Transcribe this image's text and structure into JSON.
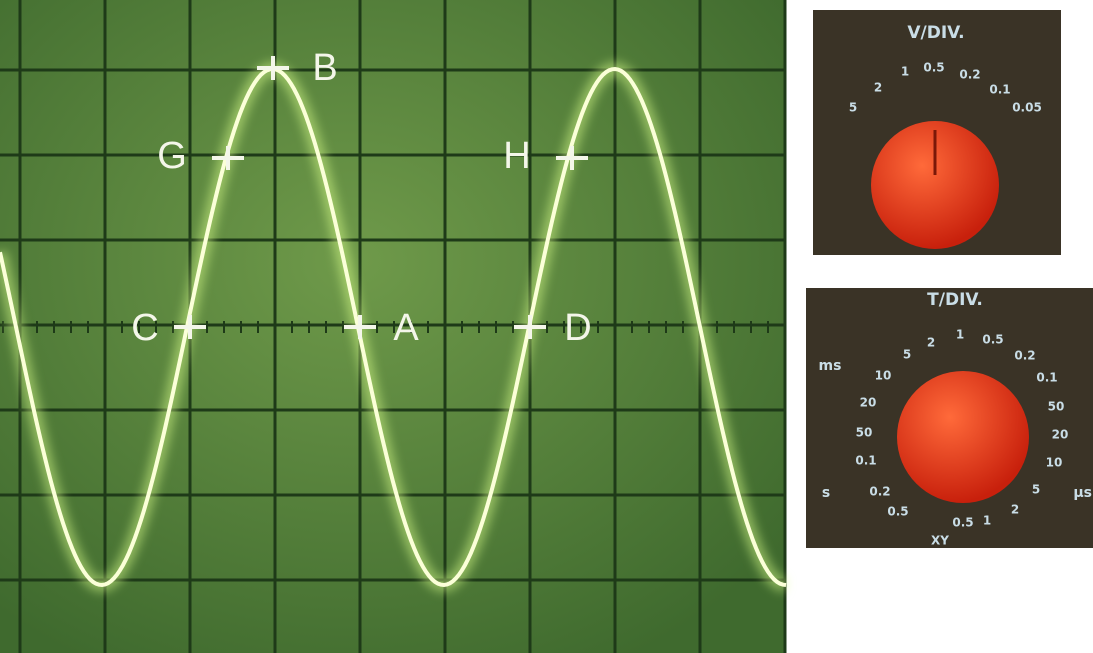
{
  "screen": {
    "points": [
      {
        "label": "B"
      },
      {
        "label": "G"
      },
      {
        "label": "H"
      },
      {
        "label": "C"
      },
      {
        "label": "A"
      },
      {
        "label": "D"
      }
    ]
  },
  "v_div": {
    "title": "V/DIV.",
    "scale": [
      "5",
      "2",
      "1",
      "0.5",
      "0.2",
      "0.1",
      "0.05"
    ]
  },
  "t_div": {
    "title": "T/DIV.",
    "units": [
      "ms",
      "s",
      "µs"
    ],
    "scale": [
      "0.5",
      "0.2",
      "0.1",
      "50",
      "20",
      "10",
      "5",
      "2",
      "1",
      "0.5",
      "0.2",
      "0.1",
      "50",
      "20",
      "10",
      "5",
      "2",
      "1",
      "0.5",
      "XY"
    ]
  }
}
